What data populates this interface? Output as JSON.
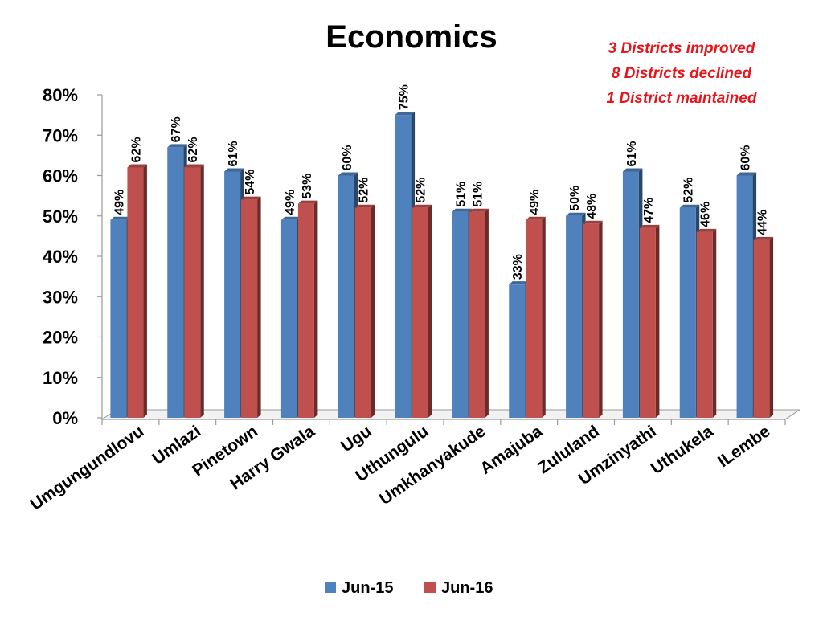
{
  "chart_data": {
    "type": "bar",
    "title": "Economics",
    "annotations": [
      "3 Districts improved",
      "8 Districts declined",
      "1 District maintained"
    ],
    "categories": [
      "Umgungundlovu",
      "Umlazi",
      "Pinetown",
      "Harry Gwala",
      "Ugu",
      "Uthungulu",
      "Umkhanyakude",
      "Amajuba",
      "Zululand",
      "Umzinyathi",
      "Uthukela",
      "ILembe"
    ],
    "series": [
      {
        "name": "Jun-15",
        "values": [
          49,
          67,
          61,
          49,
          60,
          75,
          51,
          33,
          50,
          61,
          52,
          60
        ],
        "color": "#4f81bd"
      },
      {
        "name": "Jun-16",
        "values": [
          62,
          62,
          54,
          53,
          52,
          52,
          51,
          49,
          48,
          47,
          46,
          44
        ],
        "color": "#c0504d"
      }
    ],
    "value_suffix": "%",
    "yticks": [
      "0%",
      "10%",
      "20%",
      "30%",
      "40%",
      "50%",
      "60%",
      "70%",
      "80%"
    ],
    "ylim": [
      0,
      80
    ],
    "xlabel": "",
    "ylabel": "",
    "grid": false,
    "style": "3d-clustered-column",
    "legend_position": "bottom"
  }
}
